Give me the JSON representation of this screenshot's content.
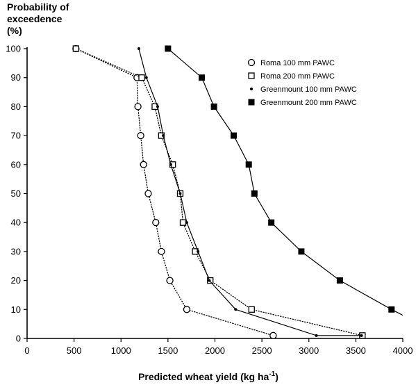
{
  "chart_data": {
    "type": "line",
    "title": "",
    "ylabel_lines": [
      "Probability of",
      "exceedence",
      "(%)"
    ],
    "xlabel": "Predicted wheat yield (kg ha",
    "xlabel_unit_sup": "-1",
    "xlabel_close": ")",
    "xlim": [
      0,
      4000
    ],
    "ylim": [
      0,
      100
    ],
    "xticks": [
      0,
      500,
      1000,
      1500,
      2000,
      2500,
      3000,
      3500,
      4000
    ],
    "yticks": [
      0,
      10,
      20,
      30,
      40,
      50,
      60,
      70,
      80,
      90,
      100
    ],
    "grid": false,
    "legend_position": "top-right",
    "series": [
      {
        "name": "Roma 100 mm PAWC",
        "marker": "open-circle",
        "line": "dotted",
        "points": [
          [
            520,
            100
          ],
          [
            1170,
            90
          ],
          [
            1180,
            80
          ],
          [
            1210,
            70
          ],
          [
            1240,
            60
          ],
          [
            1290,
            50
          ],
          [
            1370,
            40
          ],
          [
            1430,
            30
          ],
          [
            1520,
            20
          ],
          [
            1700,
            10
          ],
          [
            2620,
            1
          ]
        ]
      },
      {
        "name": "Roma 200 mm PAWC",
        "marker": "open-square",
        "line": "dotted",
        "points": [
          [
            520,
            100
          ],
          [
            1220,
            90
          ],
          [
            1360,
            80
          ],
          [
            1430,
            70
          ],
          [
            1550,
            60
          ],
          [
            1630,
            50
          ],
          [
            1660,
            40
          ],
          [
            1790,
            30
          ],
          [
            1950,
            20
          ],
          [
            2390,
            10
          ],
          [
            3570,
            1
          ]
        ]
      },
      {
        "name": "Greenmount 100 mm PAWC",
        "marker": "small-dot",
        "line": "solid",
        "points": [
          [
            1190,
            100
          ],
          [
            1270,
            90
          ],
          [
            1390,
            80
          ],
          [
            1450,
            70
          ],
          [
            1530,
            60
          ],
          [
            1630,
            50
          ],
          [
            1700,
            40
          ],
          [
            1820,
            30
          ],
          [
            1940,
            20
          ],
          [
            2220,
            10
          ],
          [
            3080,
            1
          ],
          [
            3560,
            1
          ]
        ]
      },
      {
        "name": "Greenmount 200 mm PAWC",
        "marker": "filled-square",
        "line": "solid",
        "points": [
          [
            1500,
            100
          ],
          [
            1860,
            90
          ],
          [
            1990,
            80
          ],
          [
            2200,
            70
          ],
          [
            2360,
            60
          ],
          [
            2420,
            50
          ],
          [
            2600,
            40
          ],
          [
            2920,
            30
          ],
          [
            3330,
            20
          ],
          [
            3880,
            10
          ],
          [
            4000,
            8
          ]
        ]
      }
    ]
  }
}
